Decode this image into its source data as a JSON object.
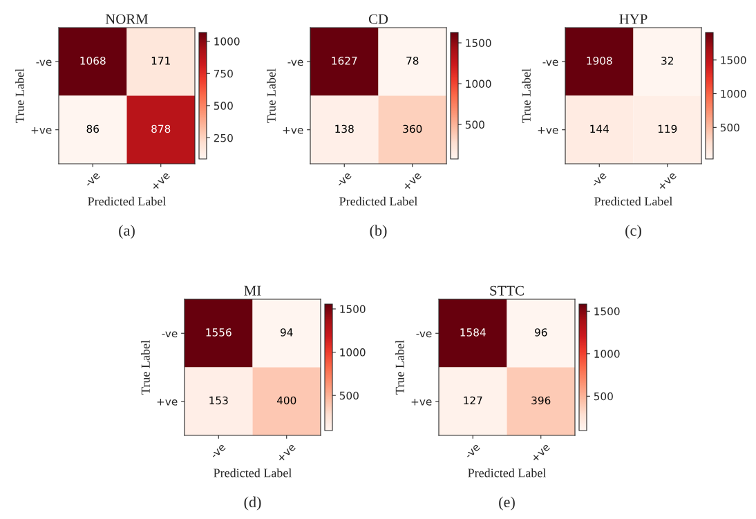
{
  "chart_data": [
    {
      "type": "heatmap",
      "title": "NORM",
      "xlabel": "Predicted Label",
      "ylabel": "True Label",
      "categories": [
        "-ve",
        "+ve"
      ],
      "y_categories": [
        "-ve",
        "+ve"
      ],
      "cells": [
        [
          1068,
          171
        ],
        [
          86,
          878
        ]
      ],
      "data_labels": true,
      "clim": [
        86,
        1068
      ],
      "cticks": [
        250,
        500,
        750,
        1000
      ],
      "annotations": [
        "(a)"
      ]
    },
    {
      "type": "heatmap",
      "title": "CD",
      "xlabel": "Predicted Label",
      "ylabel": "True Label",
      "categories": [
        "-ve",
        "+ve"
      ],
      "y_categories": [
        "-ve",
        "+ve"
      ],
      "cells": [
        [
          1627,
          78
        ],
        [
          138,
          360
        ]
      ],
      "data_labels": true,
      "clim": [
        78,
        1627
      ],
      "cticks": [
        500,
        1000,
        1500
      ],
      "annotations": [
        "(b)"
      ]
    },
    {
      "type": "heatmap",
      "title": "HYP",
      "xlabel": "Predicted Label",
      "ylabel": "True Label",
      "categories": [
        "-ve",
        "+ve"
      ],
      "y_categories": [
        "-ve",
        "+ve"
      ],
      "cells": [
        [
          1908,
          32
        ],
        [
          144,
          119
        ]
      ],
      "data_labels": true,
      "clim": [
        32,
        1908
      ],
      "cticks": [
        500,
        1000,
        1500
      ],
      "annotations": [
        "(c)"
      ]
    },
    {
      "type": "heatmap",
      "title": "MI",
      "xlabel": "Predicted Label",
      "ylabel": "True Label",
      "categories": [
        "-ve",
        "+ve"
      ],
      "y_categories": [
        "-ve",
        "+ve"
      ],
      "cells": [
        [
          1556,
          94
        ],
        [
          153,
          400
        ]
      ],
      "data_labels": true,
      "clim": [
        94,
        1556
      ],
      "cticks": [
        500,
        1000,
        1500
      ],
      "annotations": [
        "(d)"
      ]
    },
    {
      "type": "heatmap",
      "title": "STTC",
      "xlabel": "Predicted Label",
      "ylabel": "True Label",
      "categories": [
        "-ve",
        "+ve"
      ],
      "y_categories": [
        "-ve",
        "+ve"
      ],
      "cells": [
        [
          1584,
          96
        ],
        [
          127,
          396
        ]
      ],
      "data_labels": true,
      "clim": [
        96,
        1584
      ],
      "cticks": [
        500,
        1000,
        1500
      ],
      "annotations": [
        "(e)"
      ]
    }
  ]
}
